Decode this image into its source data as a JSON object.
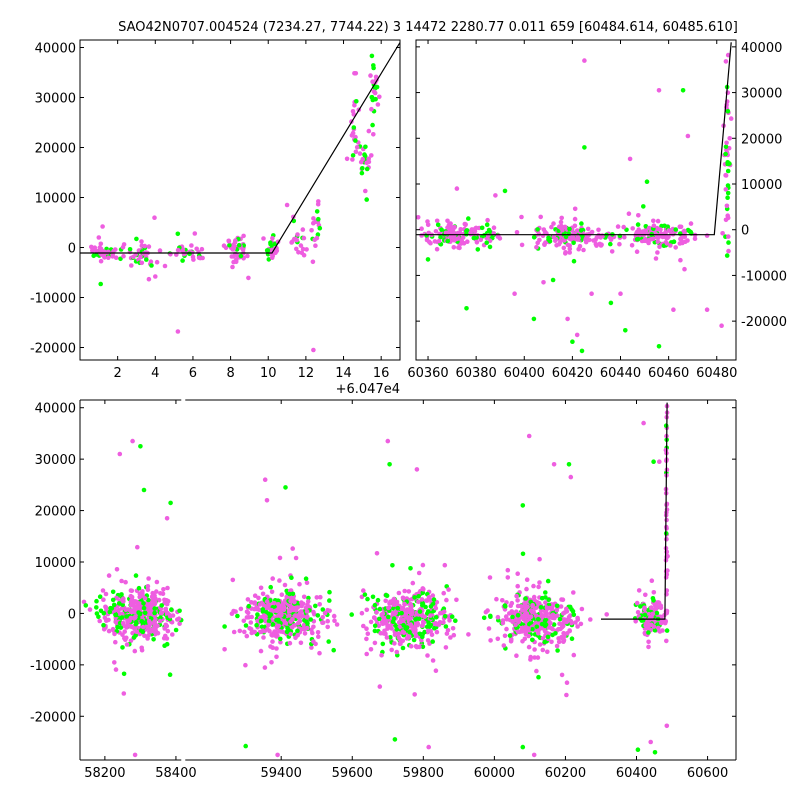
{
  "title": "SAO42N0707.004524 (7234.27, 7744.22)  3 14472 2280.77 0.011 659 [60484.614, 60485.610]",
  "colors": {
    "series_a": "#00ff00",
    "series_b": "#ee5ee0",
    "fit": "#000000"
  },
  "chart_data": [
    {
      "panel": "top-left",
      "type": "scatter",
      "x_offset_label": "+6.047e4",
      "xlim": [
        0,
        17
      ],
      "ylim": [
        -22500,
        41500
      ],
      "x_ticks": [
        2,
        4,
        6,
        8,
        10,
        12,
        14,
        16
      ],
      "y_ticks": [
        -20000,
        -10000,
        0,
        10000,
        20000,
        30000,
        40000
      ],
      "y_axis_side": "left",
      "fit_line": [
        [
          0,
          -1100
        ],
        [
          10.2,
          -1100
        ],
        [
          17,
          41000
        ]
      ],
      "clusters": [
        {
          "x_center": 1.2,
          "x_spread": 0.6,
          "y_center": -900,
          "y_spread": 700,
          "n": 40,
          "outliers": [
            [
              1.2,
              4200
            ],
            [
              1.1,
              -7300
            ],
            [
              1.0,
              2000
            ]
          ]
        },
        {
          "x_center": 3.2,
          "x_spread": 0.9,
          "y_center": -1200,
          "y_spread": 1300,
          "n": 45,
          "outliers": [
            [
              4.0,
              -5800
            ],
            [
              3.8,
              -3600
            ],
            [
              5.2,
              -16800
            ]
          ]
        },
        {
          "x_center": 5.8,
          "x_spread": 0.9,
          "y_center": -1000,
          "y_spread": 800,
          "n": 35,
          "outliers": [
            [
              6.1,
              2800
            ]
          ]
        },
        {
          "x_center": 8.3,
          "x_spread": 0.6,
          "y_center": -500,
          "y_spread": 1200,
          "n": 45,
          "outliers": [
            [
              8.1,
              -3900
            ]
          ]
        },
        {
          "x_center": 10.2,
          "x_spread": 0.3,
          "y_center": 0,
          "y_spread": 1000,
          "n": 25,
          "outliers": []
        },
        {
          "x_center": 11.6,
          "x_spread": 0.4,
          "y_center": 1500,
          "y_spread": 1700,
          "n": 20,
          "outliers": [
            [
              11.0,
              8500
            ]
          ]
        },
        {
          "x_center": 12.5,
          "x_spread": 0.25,
          "y_center": 3500,
          "y_spread": 2200,
          "n": 18,
          "outliers": [
            [
              12.4,
              -20500
            ]
          ]
        },
        {
          "x_center": 14.6,
          "x_spread": 0.3,
          "y_center": 23000,
          "y_spread": 4000,
          "n": 25,
          "outliers": []
        },
        {
          "x_center": 15.2,
          "x_spread": 0.3,
          "y_center": 16000,
          "y_spread": 2500,
          "n": 22,
          "outliers": []
        },
        {
          "x_center": 15.6,
          "x_spread": 0.3,
          "y_center": 33000,
          "y_spread": 4000,
          "n": 28,
          "outliers": []
        }
      ]
    },
    {
      "panel": "top-right",
      "type": "scatter",
      "xlim": [
        60355,
        60488
      ],
      "ylim": [
        -28500,
        41500
      ],
      "x_ticks": [
        60360,
        60380,
        60400,
        60420,
        60440,
        60460,
        60480
      ],
      "y_ticks": [
        -20000,
        -10000,
        0,
        10000,
        20000,
        30000,
        40000
      ],
      "y_axis_side": "right",
      "fit_line": [
        [
          60355,
          -1100
        ],
        [
          60479,
          -1100
        ],
        [
          60486,
          41000
        ]
      ],
      "clusters": [
        {
          "x_center": 60372,
          "x_spread": 15,
          "y_center": -1200,
          "y_spread": 1200,
          "n": 160,
          "outliers": [
            [
              60372,
              9000
            ],
            [
              60376,
              -17200
            ],
            [
              60388,
              7500
            ],
            [
              60392,
              8500
            ],
            [
              60396,
              -14000
            ],
            [
              60404,
              -19500
            ],
            [
              60408,
              -11500
            ],
            [
              60360,
              -6500
            ]
          ]
        },
        {
          "x_center": 60420,
          "x_spread": 16,
          "y_center": -1200,
          "y_spread": 1200,
          "n": 180,
          "outliers": [
            [
              60425,
              37000
            ],
            [
              60425,
              18000
            ],
            [
              60418,
              -19500
            ],
            [
              60420,
              -24500
            ],
            [
              60422,
              -23000
            ],
            [
              60424,
              -26500
            ],
            [
              60428,
              -14000
            ],
            [
              60436,
              -16000
            ],
            [
              60440,
              -14000
            ],
            [
              60412,
              -11000
            ]
          ]
        },
        {
          "x_center": 60455,
          "x_spread": 14,
          "y_center": -1200,
          "y_spread": 1200,
          "n": 150,
          "outliers": [
            [
              60444,
              15500
            ],
            [
              60451,
              10500
            ],
            [
              60456,
              30500
            ],
            [
              60466,
              30500
            ],
            [
              60468,
              20500
            ],
            [
              60456,
              -25500
            ],
            [
              60462,
              -17500
            ],
            [
              60442,
              -22000
            ],
            [
              60476,
              -17500
            ]
          ]
        },
        {
          "x_center": 60484.5,
          "x_spread": 1.2,
          "y_center": 15000,
          "y_spread": 12000,
          "n": 45,
          "outliers": [
            [
              60482,
              -21000
            ]
          ]
        }
      ]
    },
    {
      "panel": "bottom",
      "type": "scatter",
      "xlim": [
        58130,
        60680
      ],
      "x_break": [
        58415,
        59130
      ],
      "ylim": [
        -28500,
        41500
      ],
      "x_ticks": [
        58200,
        58400,
        59400,
        59600,
        59800,
        60000,
        60200,
        60400,
        60600
      ],
      "y_ticks": [
        -20000,
        -10000,
        0,
        10000,
        20000,
        30000,
        40000
      ],
      "y_axis_side": "left",
      "fit_line": [
        [
          60300,
          -1100
        ],
        [
          60480,
          -1100
        ],
        [
          60486,
          41000
        ]
      ],
      "clusters": [
        {
          "x_center": 58300,
          "x_spread": 95,
          "y_center": -400,
          "y_spread": 2200,
          "n": 420,
          "outliers": [
            [
              58278,
              33500
            ],
            [
              58300,
              32500
            ],
            [
              58242,
              31000
            ],
            [
              58310,
              24000
            ],
            [
              58375,
              18500
            ],
            [
              58385,
              21500
            ],
            [
              58285,
              -27500
            ]
          ]
        },
        {
          "x_center": 59400,
          "x_spread": 105,
          "y_center": -500,
          "y_spread": 2200,
          "n": 420,
          "outliers": [
            [
              59355,
              26000
            ],
            [
              59412,
              24500
            ],
            [
              59360,
              22000
            ],
            [
              59300,
              -25800
            ],
            [
              59390,
              -27500
            ]
          ]
        },
        {
          "x_center": 59760,
          "x_spread": 100,
          "y_center": -700,
          "y_spread": 2500,
          "n": 420,
          "outliers": [
            [
              59700,
              33500
            ],
            [
              59705,
              29000
            ],
            [
              59782,
              28000
            ],
            [
              59720,
              -24500
            ],
            [
              59815,
              -26000
            ]
          ]
        },
        {
          "x_center": 60120,
          "x_spread": 100,
          "y_center": -1000,
          "y_spread": 2400,
          "n": 420,
          "outliers": [
            [
              60098,
              34500
            ],
            [
              60080,
              21000
            ],
            [
              60168,
              29000
            ],
            [
              60210,
              29000
            ],
            [
              60215,
              26500
            ],
            [
              60080,
              -26000
            ],
            [
              60112,
              -27500
            ]
          ]
        },
        {
          "x_center": 60440,
          "x_spread": 35,
          "y_center": -800,
          "y_spread": 1500,
          "n": 150,
          "outliers": [
            [
              60420,
              37000
            ],
            [
              60448,
              29500
            ],
            [
              60464,
              29500
            ],
            [
              60404,
              -26500
            ],
            [
              60440,
              -25000
            ],
            [
              60452,
              -27000
            ]
          ]
        },
        {
          "x_center": 60485,
          "x_spread": 2,
          "y_center": 15000,
          "y_spread": 12000,
          "n": 55,
          "outliers": []
        }
      ]
    }
  ]
}
